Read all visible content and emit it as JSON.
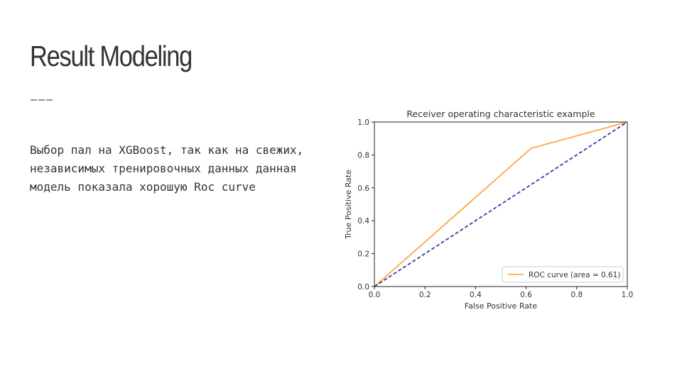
{
  "slide": {
    "title": "Result Modeling",
    "rule": "———",
    "body": "Выбор пал на XGBoost, так как на свежих, независимых тренировочных данных данная модель показала хорошую Roc curve"
  },
  "chart_data": {
    "type": "line",
    "title": "Receiver operating characteristic example",
    "xlabel": "False Positive Rate",
    "ylabel": "True Positive Rate",
    "xlim": [
      0.0,
      1.0
    ],
    "ylim": [
      0.0,
      1.0
    ],
    "xticks": [
      "0.0",
      "0.2",
      "0.4",
      "0.6",
      "0.8",
      "1.0"
    ],
    "yticks": [
      "0.0",
      "0.2",
      "0.4",
      "0.6",
      "0.8",
      "1.0"
    ],
    "grid": false,
    "legend_position": "lower-right",
    "series": [
      {
        "name": "ROC curve (area = 0.61)",
        "x": [
          0.0,
          0.62,
          1.0
        ],
        "y": [
          0.0,
          0.84,
          1.0
        ],
        "color": "#fda945",
        "style": "solid"
      },
      {
        "x": [
          0.0,
          1.0
        ],
        "y": [
          0.0,
          1.0
        ],
        "color": "#3b3b9e",
        "style": "dashed"
      }
    ]
  }
}
